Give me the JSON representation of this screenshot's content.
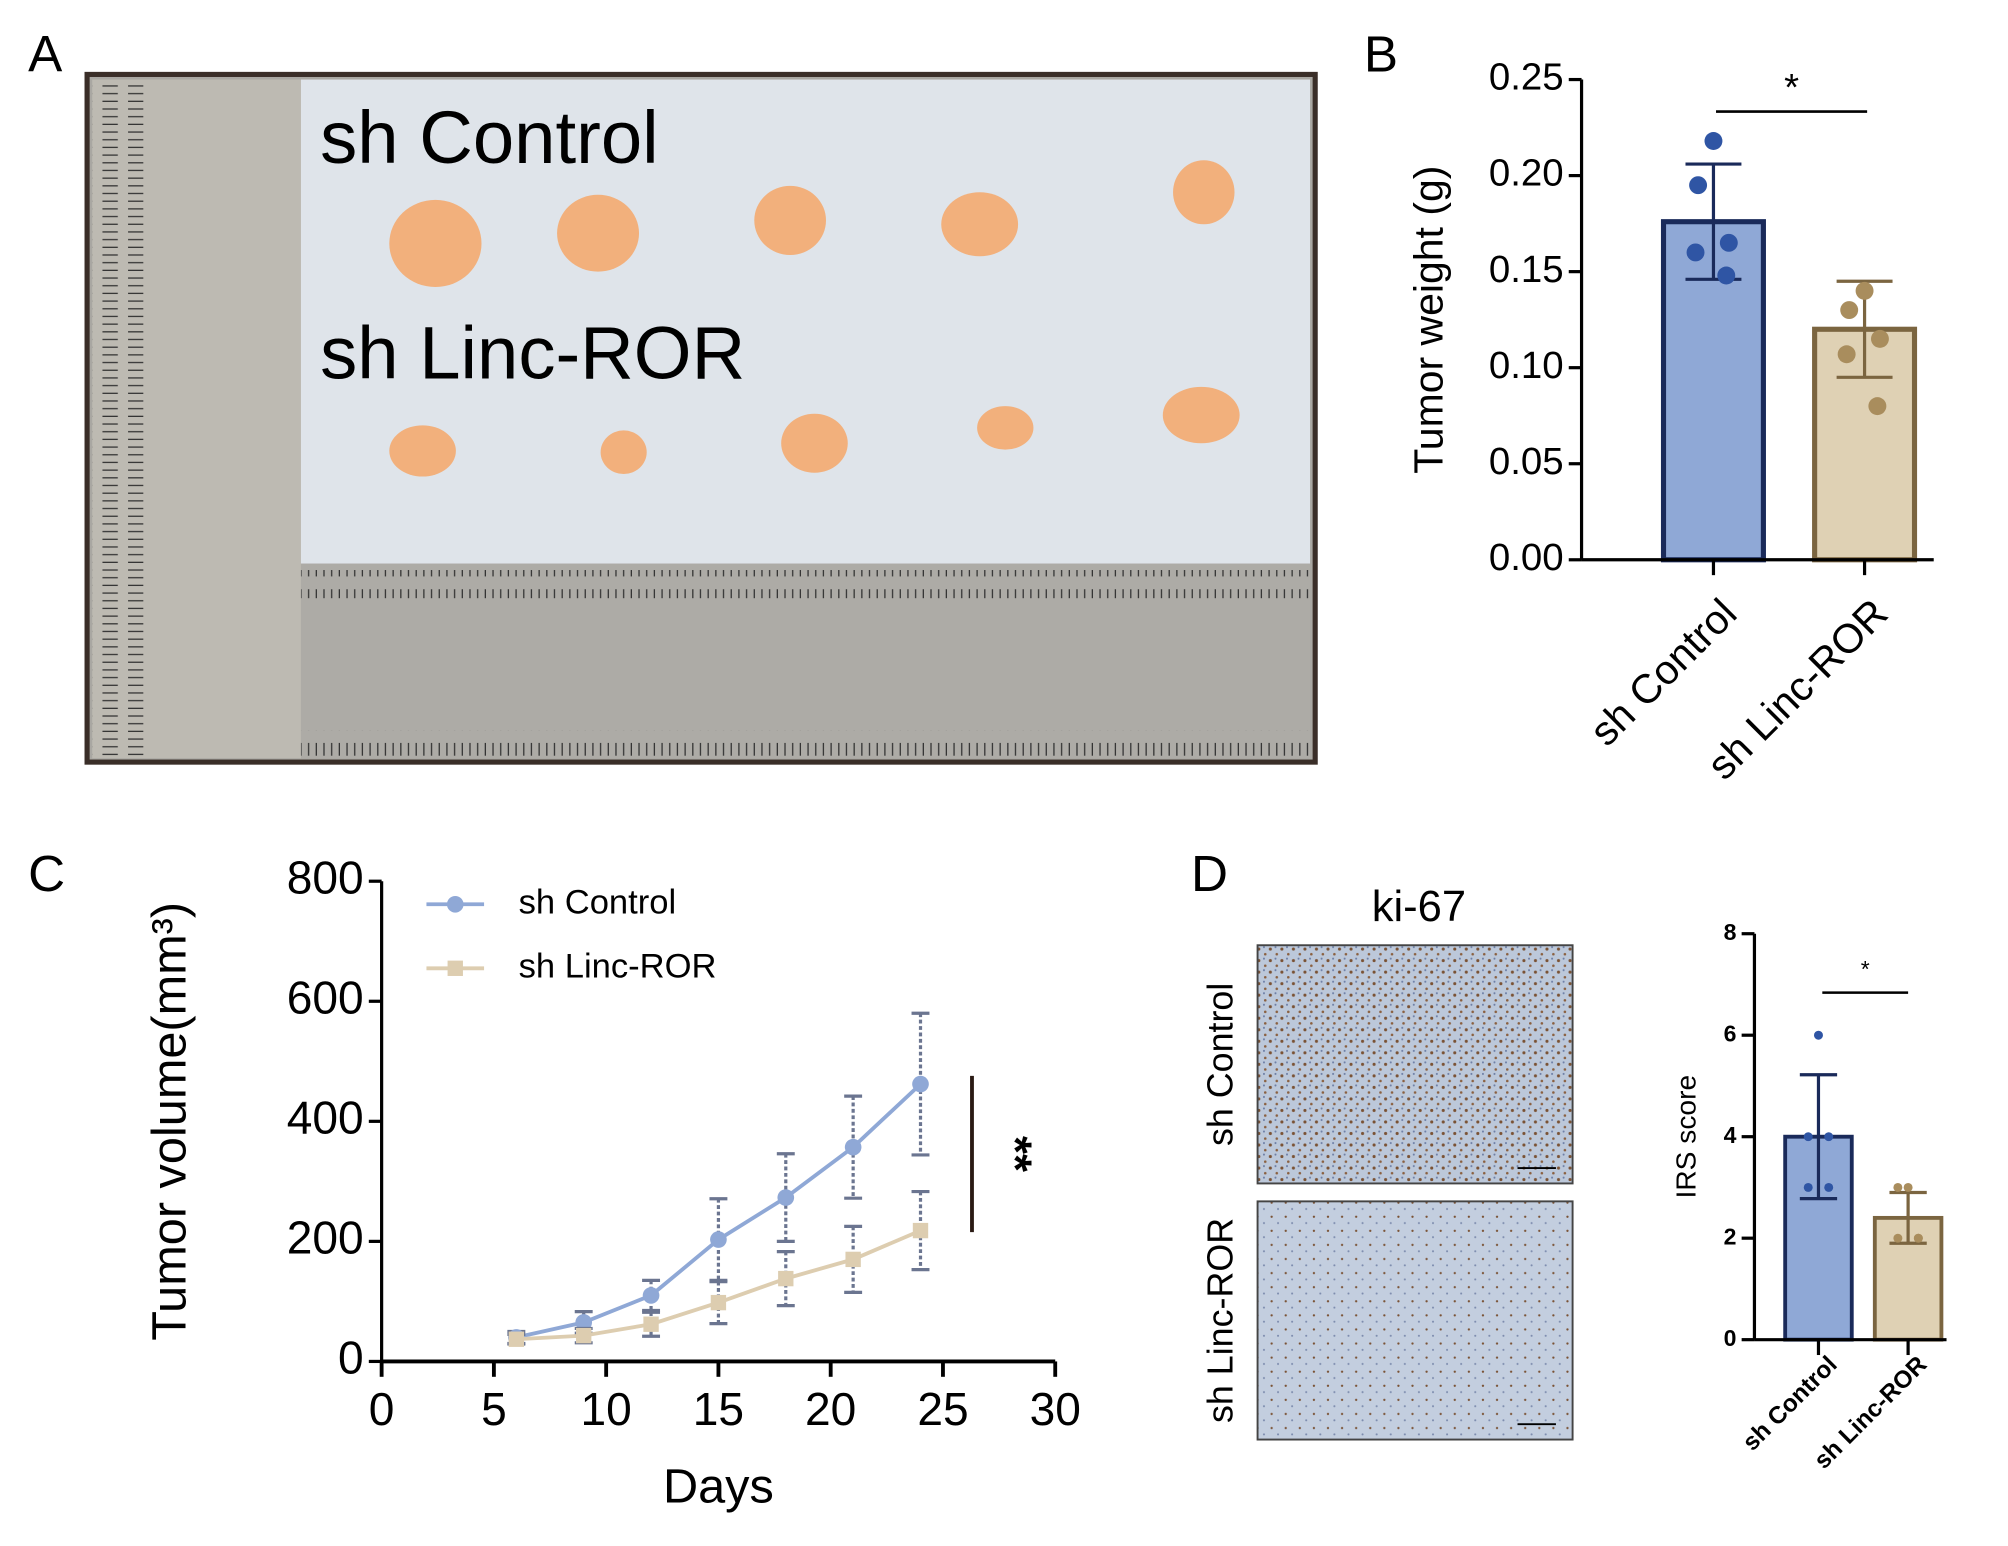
{
  "panel_labels": [
    "A",
    "B",
    "C",
    "D"
  ],
  "photo": {
    "labels": [
      "sh Control",
      "sh Linc-ROR"
    ]
  },
  "ihc": {
    "title": "ki-67",
    "rows": [
      "sh Control",
      "sh Linc-ROR"
    ]
  },
  "chart_data": [
    {
      "type": "bar",
      "y_label": "Tumor weight (g)",
      "categories": [
        "sh Control",
        "sh Linc-ROR"
      ],
      "values": [
        0.176,
        0.12
      ],
      "errors": [
        0.03,
        0.025
      ],
      "points": [
        [
          0.218,
          0.195,
          0.165,
          0.16,
          0.148
        ],
        [
          0.14,
          0.13,
          0.115,
          0.107,
          0.08
        ]
      ],
      "colors": [
        "#8fa8d6",
        "#dfd1b4"
      ],
      "edge_colors": [
        "#1a2a5a",
        "#7b6540"
      ],
      "point_colors": [
        "#2f55a4",
        "#a98d5d"
      ],
      "ylim": [
        0,
        0.25
      ],
      "yticks": [
        {
          "value": 0,
          "label": "0.00"
        },
        0.05,
        {
          "value": 0.1,
          "label": "0.10"
        },
        0.15,
        {
          "value": 0.2,
          "label": "0.20"
        },
        0.25
      ],
      "annotation": "*"
    },
    {
      "type": "line",
      "x_label": "Days",
      "y_label": "Tumor volume(mm³)",
      "x": [
        6,
        9,
        12,
        15,
        18,
        21,
        24
      ],
      "series": [
        {
          "name": "sh Control",
          "color": "#8fa8d6",
          "marker": "circle",
          "values": [
            40,
            65,
            110,
            203,
            273,
            357,
            462
          ],
          "errors": [
            10,
            18,
            25,
            68,
            73,
            85,
            118
          ]
        },
        {
          "name": "sh Linc-ROR",
          "color": "#ddcdb0",
          "marker": "square",
          "values": [
            37,
            43,
            62,
            98,
            138,
            170,
            218
          ],
          "errors": [
            8,
            12,
            20,
            35,
            45,
            55,
            65
          ]
        }
      ],
      "xlim": [
        0,
        30
      ],
      "xticks": [
        0,
        5,
        10,
        15,
        20,
        25,
        30
      ],
      "ylim": [
        0,
        800
      ],
      "yticks": [
        0,
        200,
        400,
        600,
        800
      ],
      "annotation": "**"
    },
    {
      "type": "bar",
      "y_label": "IRS score",
      "categories": [
        "sh Control",
        "sh Linc-ROR"
      ],
      "values": [
        4.0,
        2.4
      ],
      "errors": [
        1.22,
        0.5
      ],
      "points": [
        [
          6,
          4,
          4,
          3,
          3
        ],
        [
          3,
          3,
          2,
          2,
          2
        ]
      ],
      "colors": [
        "#8fa8d6",
        "#dfd1b4"
      ],
      "edge_colors": [
        "#1a2a5a",
        "#7b6540"
      ],
      "point_colors": [
        "#2f55a4",
        "#a98d5d"
      ],
      "ylim": [
        0,
        8
      ],
      "yticks": [
        0,
        2,
        4,
        6,
        8
      ],
      "annotation": "*"
    }
  ]
}
